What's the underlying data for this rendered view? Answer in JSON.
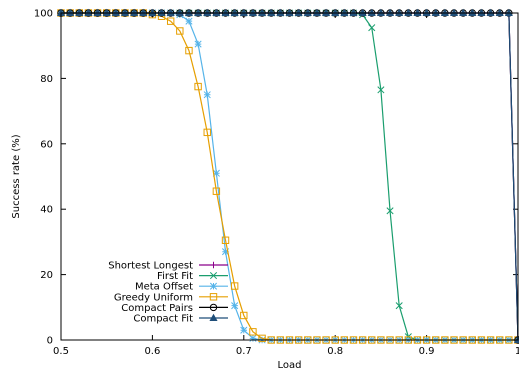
{
  "chart_data": {
    "type": "line",
    "title": "",
    "xlabel": "Load",
    "ylabel": "Success rate (%)",
    "xlim": [
      0.5,
      1.0
    ],
    "ylim": [
      0,
      100
    ],
    "xticks": [
      0.5,
      0.6,
      0.7,
      0.8,
      0.9,
      1.0
    ],
    "xtick_labels": [
      "0.5",
      "0.6",
      "0.7",
      "0.8",
      "0.9",
      "1"
    ],
    "yticks": [
      0,
      20,
      40,
      60,
      80,
      100
    ],
    "ytick_labels": [
      "0",
      "20",
      "40",
      "60",
      "80",
      "100"
    ],
    "grid": false,
    "legend_position": "bottom-left",
    "series": [
      {
        "name": "Shortest Longest",
        "color": "#8b008b",
        "marker": "plus",
        "x": [
          0.5,
          0.51,
          0.52,
          0.53,
          0.54,
          0.55,
          0.56,
          0.57,
          0.58,
          0.59,
          0.6,
          0.61,
          0.62,
          0.63,
          0.64,
          0.65,
          0.66,
          0.67,
          0.68,
          0.69,
          0.7,
          0.71,
          0.72,
          0.73,
          0.74,
          0.75,
          0.76,
          0.77,
          0.78,
          0.79,
          0.8,
          0.81,
          0.82,
          0.83,
          0.84,
          0.85,
          0.86,
          0.87,
          0.88,
          0.89,
          0.9,
          0.91,
          0.92,
          0.93,
          0.94,
          0.95,
          0.96,
          0.97,
          0.98,
          0.99,
          1.0
        ],
        "y": [
          100,
          100,
          100,
          100,
          100,
          100,
          100,
          100,
          100,
          100,
          100,
          100,
          100,
          100,
          100,
          100,
          100,
          100,
          100,
          100,
          100,
          100,
          100,
          100,
          100,
          100,
          100,
          100,
          100,
          100,
          100,
          100,
          100,
          100,
          100,
          100,
          100,
          100,
          100,
          100,
          100,
          100,
          100,
          100,
          100,
          100,
          100,
          100,
          100,
          100,
          0
        ]
      },
      {
        "name": "First Fit",
        "color": "#1a9e6e",
        "marker": "x",
        "x": [
          0.5,
          0.51,
          0.52,
          0.53,
          0.54,
          0.55,
          0.56,
          0.57,
          0.58,
          0.59,
          0.6,
          0.61,
          0.62,
          0.63,
          0.64,
          0.65,
          0.66,
          0.67,
          0.68,
          0.69,
          0.7,
          0.71,
          0.72,
          0.73,
          0.74,
          0.75,
          0.76,
          0.77,
          0.78,
          0.79,
          0.8,
          0.81,
          0.82,
          0.83,
          0.84,
          0.85,
          0.86,
          0.87,
          0.88,
          0.89,
          0.9,
          0.91,
          0.92,
          0.93,
          0.94,
          0.95,
          0.96,
          0.97,
          0.98,
          0.99,
          1.0
        ],
        "y": [
          100,
          100,
          100,
          100,
          100,
          100,
          100,
          100,
          100,
          100,
          100,
          100,
          100,
          100,
          100,
          100,
          100,
          100,
          100,
          100,
          100,
          100,
          100,
          100,
          100,
          100,
          100,
          100,
          100,
          100,
          100,
          100,
          100,
          99.5,
          95.5,
          76.5,
          39.5,
          10.5,
          1,
          0,
          0,
          0,
          0,
          0,
          0,
          0,
          0,
          0,
          0,
          0,
          0
        ]
      },
      {
        "name": "Meta Offset",
        "color": "#56b4e9",
        "marker": "asterisk",
        "x": [
          0.5,
          0.51,
          0.52,
          0.53,
          0.54,
          0.55,
          0.56,
          0.57,
          0.58,
          0.59,
          0.6,
          0.61,
          0.62,
          0.63,
          0.64,
          0.65,
          0.66,
          0.67,
          0.68,
          0.69,
          0.7,
          0.71,
          0.72,
          0.73,
          0.74,
          0.75,
          0.76,
          0.77,
          0.78,
          0.79,
          0.8,
          0.81,
          0.82,
          0.83,
          0.84,
          0.85,
          0.86,
          0.87,
          0.88,
          0.89,
          0.9,
          0.91,
          0.92,
          0.93,
          0.94,
          0.95,
          0.96,
          0.97,
          0.98,
          0.99,
          1.0
        ],
        "y": [
          100,
          100,
          100,
          100,
          100,
          100,
          100,
          100,
          100,
          100,
          100,
          100,
          100,
          99.5,
          97.5,
          90.5,
          75,
          51,
          27,
          10.5,
          3,
          0.5,
          0,
          0,
          0,
          0,
          0,
          0,
          0,
          0,
          0,
          0,
          0,
          0,
          0,
          0,
          0,
          0,
          0,
          0,
          0,
          0,
          0,
          0,
          0,
          0,
          0,
          0,
          0,
          0,
          0
        ]
      },
      {
        "name": "Greedy Uniform",
        "color": "#e69f00",
        "marker": "square",
        "x": [
          0.5,
          0.51,
          0.52,
          0.53,
          0.54,
          0.55,
          0.56,
          0.57,
          0.58,
          0.59,
          0.6,
          0.61,
          0.62,
          0.63,
          0.64,
          0.65,
          0.66,
          0.67,
          0.68,
          0.69,
          0.7,
          0.71,
          0.72,
          0.73,
          0.74,
          0.75,
          0.76,
          0.77,
          0.78,
          0.79,
          0.8,
          0.81,
          0.82,
          0.83,
          0.84,
          0.85,
          0.86,
          0.87,
          0.88,
          0.89,
          0.9,
          0.91,
          0.92,
          0.93,
          0.94,
          0.95,
          0.96,
          0.97,
          0.98,
          0.99,
          1.0
        ],
        "y": [
          100,
          100,
          100,
          100,
          100,
          100,
          100,
          100,
          100,
          100,
          99.5,
          99,
          97.5,
          94.5,
          88.5,
          77.5,
          63.5,
          45.5,
          30.5,
          16.5,
          7.5,
          2.5,
          0.5,
          0,
          0,
          0,
          0,
          0,
          0,
          0,
          0,
          0,
          0,
          0,
          0,
          0,
          0,
          0,
          0,
          0,
          0,
          0,
          0,
          0,
          0,
          0,
          0,
          0,
          0,
          0,
          0
        ]
      },
      {
        "name": "Compact Pairs",
        "color": "#000000",
        "marker": "circle",
        "x": [
          0.5,
          0.51,
          0.52,
          0.53,
          0.54,
          0.55,
          0.56,
          0.57,
          0.58,
          0.59,
          0.6,
          0.61,
          0.62,
          0.63,
          0.64,
          0.65,
          0.66,
          0.67,
          0.68,
          0.69,
          0.7,
          0.71,
          0.72,
          0.73,
          0.74,
          0.75,
          0.76,
          0.77,
          0.78,
          0.79,
          0.8,
          0.81,
          0.82,
          0.83,
          0.84,
          0.85,
          0.86,
          0.87,
          0.88,
          0.89,
          0.9,
          0.91,
          0.92,
          0.93,
          0.94,
          0.95,
          0.96,
          0.97,
          0.98,
          0.99,
          1.0
        ],
        "y": [
          100,
          100,
          100,
          100,
          100,
          100,
          100,
          100,
          100,
          100,
          100,
          100,
          100,
          100,
          100,
          100,
          100,
          100,
          100,
          100,
          100,
          100,
          100,
          100,
          100,
          100,
          100,
          100,
          100,
          100,
          100,
          100,
          100,
          100,
          100,
          100,
          100,
          100,
          100,
          100,
          100,
          100,
          100,
          100,
          100,
          100,
          100,
          100,
          100,
          100,
          0
        ]
      },
      {
        "name": "Compact Fit",
        "color": "#1f4e79",
        "marker": "triangle",
        "x": [
          0.5,
          0.51,
          0.52,
          0.53,
          0.54,
          0.55,
          0.56,
          0.57,
          0.58,
          0.59,
          0.6,
          0.61,
          0.62,
          0.63,
          0.64,
          0.65,
          0.66,
          0.67,
          0.68,
          0.69,
          0.7,
          0.71,
          0.72,
          0.73,
          0.74,
          0.75,
          0.76,
          0.77,
          0.78,
          0.79,
          0.8,
          0.81,
          0.82,
          0.83,
          0.84,
          0.85,
          0.86,
          0.87,
          0.88,
          0.89,
          0.9,
          0.91,
          0.92,
          0.93,
          0.94,
          0.95,
          0.96,
          0.97,
          0.98,
          0.99,
          1.0
        ],
        "y": [
          100,
          100,
          100,
          100,
          100,
          100,
          100,
          100,
          100,
          100,
          100,
          100,
          100,
          100,
          100,
          100,
          100,
          100,
          100,
          100,
          100,
          100,
          100,
          100,
          100,
          100,
          100,
          100,
          100,
          100,
          100,
          100,
          100,
          100,
          100,
          100,
          100,
          100,
          100,
          100,
          100,
          100,
          100,
          100,
          100,
          100,
          100,
          100,
          100,
          100,
          0
        ]
      }
    ]
  }
}
